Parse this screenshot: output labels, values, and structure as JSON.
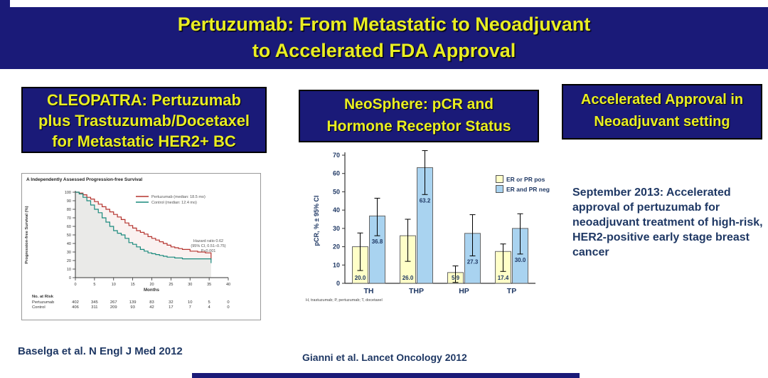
{
  "colors": {
    "navy": "#1a1a78",
    "yellow": "#e9ee22",
    "textnavy": "#1f3864",
    "km_red": "#b5342f",
    "km_teal": "#1a8a7d",
    "bar_yellow": "#ffffc8",
    "bar_blue": "#a9d3f0"
  },
  "title": {
    "line1": "Pertuzumab:  From Metastatic to Neoadjuvant",
    "line2": "to Accelerated FDA Approval"
  },
  "boxes": {
    "cleopatra": {
      "lines": [
        "CLEOPATRA:  Pertuzumab",
        "plus Trastuzumab/Docetaxel",
        "for Metastatic HER2+ BC"
      ]
    },
    "neosphere": {
      "lines": [
        "NeoSphere:  pCR and",
        "Hormone Receptor Status"
      ]
    },
    "accelerated": {
      "lines": [
        "Accelerated Approval in",
        "Neoadjuvant setting"
      ]
    }
  },
  "right_text": "September 2013:  Accelerated approval of pertuzumab for neoadjuvant treatment of high-risk, HER2-positive early stage breast cancer",
  "citations": {
    "left": "Baselga et al. N Engl J Med 2012",
    "middle": "Gianni et al.  Lancet Oncology 2012"
  },
  "chart_data": [
    {
      "type": "line",
      "title": "A   Independently Assessed Progression-free Survival",
      "xlabel": "Months",
      "ylabel": "Progression-free Survival (%)",
      "xlim": [
        0,
        40
      ],
      "ylim": [
        0,
        100
      ],
      "xticks": [
        0,
        5,
        10,
        15,
        20,
        25,
        30,
        35,
        40
      ],
      "yticks": [
        0,
        10,
        20,
        30,
        40,
        50,
        60,
        70,
        80,
        90,
        100
      ],
      "legend_position": "upper right",
      "series": [
        {
          "name": "Pertuzumab (median: 18.5 mo)",
          "color": "#b5342f",
          "x": [
            0,
            1,
            2,
            3,
            4,
            5,
            6,
            7,
            8,
            9,
            10,
            11,
            12,
            13,
            14,
            15,
            16,
            17,
            18,
            19,
            20,
            21,
            22,
            23,
            24,
            25,
            26,
            27,
            28,
            30,
            32,
            34,
            35.5
          ],
          "y": [
            100,
            99,
            97,
            94,
            92,
            89,
            86,
            83,
            80,
            77,
            74,
            71,
            68,
            64,
            61,
            58,
            55,
            53,
            51,
            48,
            46,
            44,
            42,
            40,
            38,
            36,
            35,
            34,
            33,
            31,
            30,
            29,
            21
          ]
        },
        {
          "name": "Control (median: 12.4 mo)",
          "color": "#1a8a7d",
          "x": [
            0,
            1,
            2,
            3,
            4,
            5,
            6,
            7,
            8,
            9,
            10,
            11,
            12,
            13,
            14,
            15,
            16,
            17,
            18,
            19,
            20,
            21,
            22,
            23,
            24,
            25,
            26,
            28,
            30,
            32,
            34,
            35.5
          ],
          "y": [
            100,
            98,
            94,
            90,
            85,
            80,
            76,
            70,
            65,
            60,
            55,
            52,
            50,
            46,
            41,
            39,
            36,
            33,
            31,
            29,
            28,
            27,
            26,
            25,
            24,
            24,
            23,
            22,
            22,
            22,
            22,
            17
          ]
        }
      ],
      "annotation": [
        "Hazard ratio 0.62",
        "(95% CI, 0.51–0.75)",
        "P<0.001"
      ],
      "at_risk": {
        "label": "No. at Risk",
        "rows": [
          {
            "name": "Pertuzumab",
            "values": [
              402,
              345,
              267,
              139,
              83,
              32,
              10,
              5,
              0
            ]
          },
          {
            "name": "Control",
            "values": [
              406,
              311,
              209,
              93,
              42,
              17,
              7,
              4,
              0
            ]
          }
        ]
      }
    },
    {
      "type": "bar",
      "title": "",
      "xlabel": "",
      "ylabel": "pCR, % ± 95% CI",
      "ylim": [
        0,
        70
      ],
      "yticks": [
        0,
        10,
        20,
        30,
        40,
        50,
        60,
        70
      ],
      "categories": [
        "TH",
        "THP",
        "HP",
        "TP"
      ],
      "legend_position": "upper right",
      "series": [
        {
          "name": "ER or PR pos",
          "color": "#ffffc8",
          "values": [
            20.0,
            26.0,
            5.9,
            17.4
          ],
          "labels": [
            "20.0",
            "26.0",
            "5.9",
            "17.4"
          ],
          "ci_low": [
            7,
            12,
            0.5,
            6.5
          ],
          "ci_high": [
            27.5,
            35,
            9.5,
            21.5
          ]
        },
        {
          "name": "ER and PR neg",
          "color": "#a9d3f0",
          "values": [
            36.8,
            63.2,
            27.3,
            30.0
          ],
          "labels": [
            "36.8",
            "63.2",
            "27.3",
            "30.0"
          ],
          "ci_low": [
            26,
            48.5,
            15,
            16
          ],
          "ci_high": [
            46.5,
            72.5,
            37.5,
            38
          ]
        }
      ],
      "footnote": "H, trastuzumab; P, pertuzumab; T, docetaxel"
    }
  ]
}
